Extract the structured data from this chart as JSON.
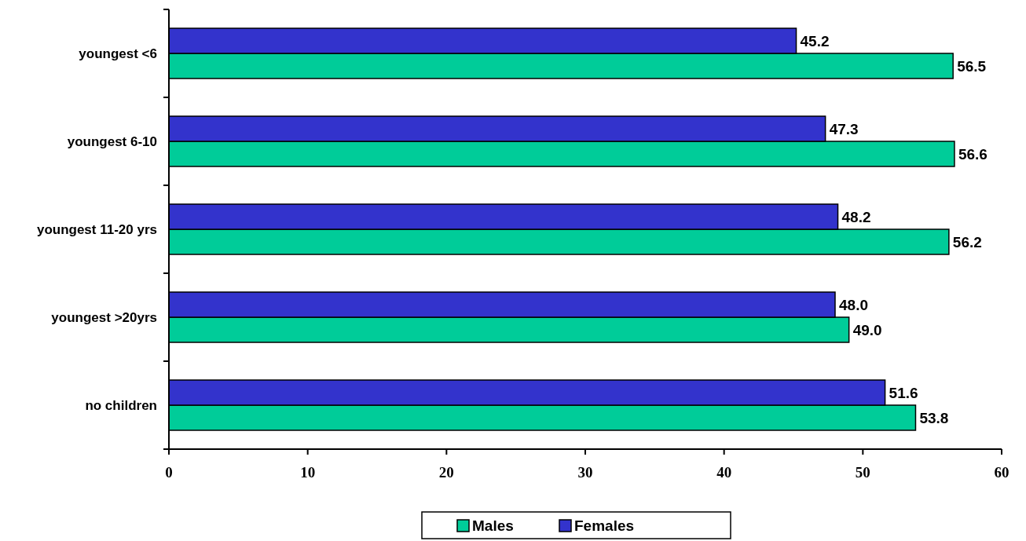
{
  "chart_data": {
    "type": "bar",
    "orientation": "horizontal",
    "categories": [
      "youngest <6",
      "youngest 6-10",
      "youngest 11-20 yrs",
      "youngest >20yrs",
      "no children"
    ],
    "series": [
      {
        "name": "Males",
        "color": "#00cc99",
        "values": [
          56.5,
          56.6,
          56.2,
          49.0,
          53.8
        ],
        "value_labels": [
          "56.5",
          "56.6",
          "56.2",
          "49.0",
          "53.8"
        ]
      },
      {
        "name": "Females",
        "color": "#3333cc",
        "values": [
          45.2,
          47.3,
          48.2,
          48.0,
          51.6
        ],
        "value_labels": [
          "45.2",
          "47.3",
          "48.2",
          "48.0",
          "51.6"
        ]
      }
    ],
    "xlim": [
      0,
      60
    ],
    "xticks": [
      0,
      10,
      20,
      30,
      40,
      50,
      60
    ],
    "legend": "bottom",
    "grid": false
  }
}
